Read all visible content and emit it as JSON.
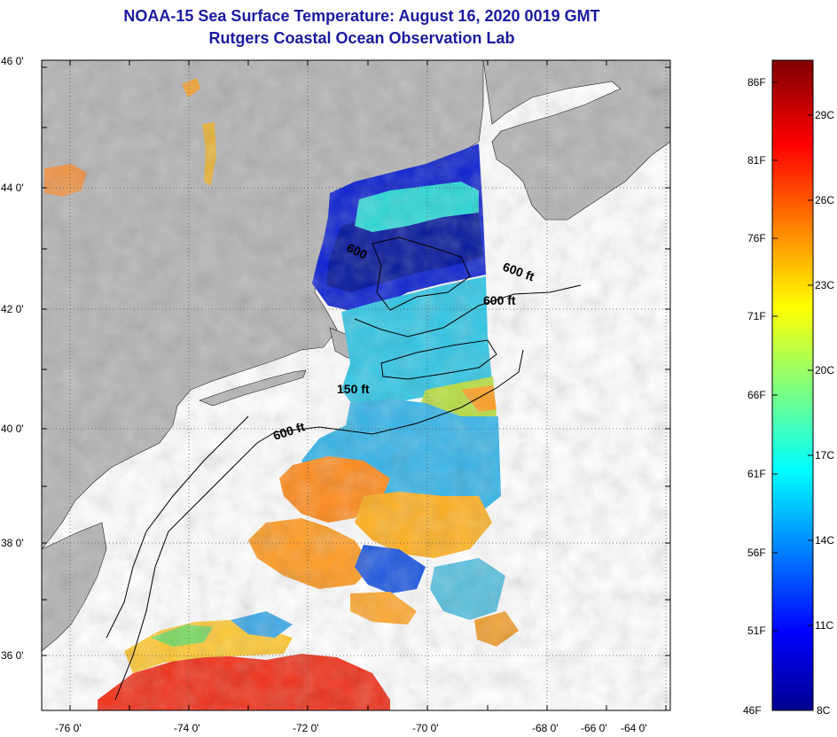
{
  "title": "NOAA-15 Sea Surface Temperature:  August 16, 2020 0019 GMT",
  "subtitle": "Rutgers Coastal Ocean Observation Lab",
  "map": {
    "lat_labels": [
      "46 0'",
      "44 0'",
      "42 0'",
      "40 0'",
      "38 0'",
      "36 0'"
    ],
    "lon_labels": [
      "-76 0'",
      "-74 0'",
      "-72 0'",
      "-70 0'",
      "-68 0'",
      "-66 0'",
      "-64 0'"
    ],
    "contour_labels": [
      "600 ft",
      "600 ft",
      "600",
      "150 ft",
      "600 ft"
    ],
    "colors": {
      "land": "#b3b3b3",
      "no_data": "#ffffff"
    }
  },
  "colorbar": {
    "fahrenheit_labels": [
      "86F",
      "81F",
      "76F",
      "71F",
      "66F",
      "61F",
      "56F",
      "51F",
      "46F"
    ],
    "celsius_labels": [
      "29C",
      "26C",
      "23C",
      "20C",
      "17C",
      "14C",
      "11C",
      "8C"
    ],
    "min_label_f": "46F",
    "min_label_c": "8C"
  }
}
